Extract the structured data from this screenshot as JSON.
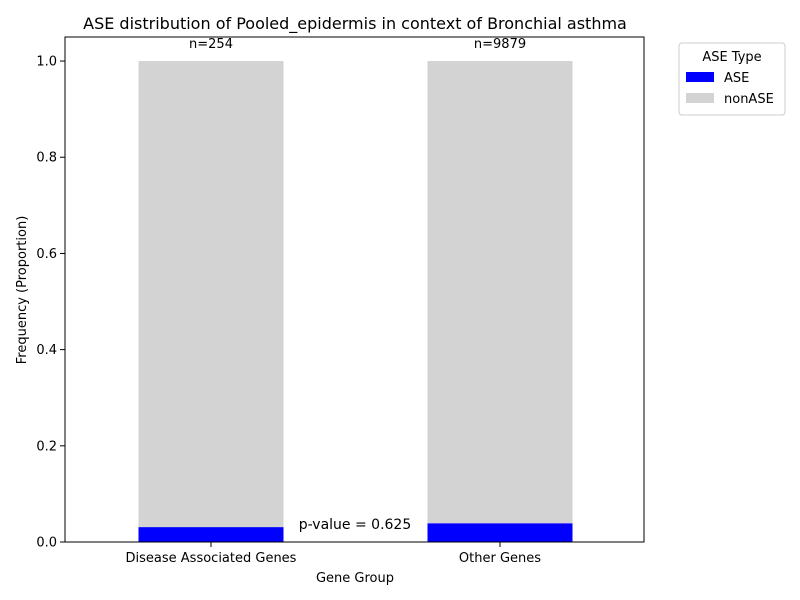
{
  "chart_data": {
    "type": "bar",
    "stacked": true,
    "title": "ASE distribution of Pooled_epidermis in context of Bronchial asthma",
    "xlabel": "Gene Group",
    "ylabel": "Frequency (Proportion)",
    "categories": [
      "Disease Associated Genes",
      "Other Genes"
    ],
    "counts": [
      "n=254",
      "n=9879"
    ],
    "series": [
      {
        "name": "ASE",
        "color": "#0000ff",
        "values": [
          0.031,
          0.039
        ]
      },
      {
        "name": "nonASE",
        "color": "#d3d3d3",
        "values": [
          0.969,
          0.961
        ]
      }
    ],
    "ylim": [
      0,
      1.05
    ],
    "yticks": [
      0.0,
      0.2,
      0.4,
      0.6,
      0.8,
      1.0
    ],
    "ytick_labels": [
      "0.0",
      "0.2",
      "0.4",
      "0.6",
      "0.8",
      "1.0"
    ],
    "annotation": "p-value = 0.625",
    "legend": {
      "title": "ASE Type",
      "placement": "outside-top-right"
    },
    "grid": false
  }
}
